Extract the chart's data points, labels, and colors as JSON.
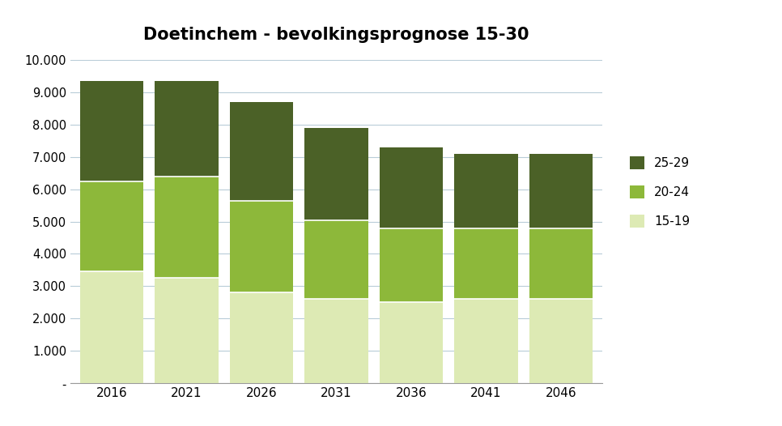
{
  "title": "Doetinchem - bevolkingsprognose 15-30",
  "years": [
    2016,
    2021,
    2026,
    2031,
    2036,
    2041,
    2046
  ],
  "series": {
    "15-19": [
      3450,
      3250,
      2800,
      2600,
      2500,
      2600,
      2600
    ],
    "20-24": [
      2800,
      3150,
      2850,
      2450,
      2300,
      2200,
      2200
    ],
    "25-29": [
      3100,
      2950,
      3050,
      2850,
      2500,
      2300,
      2300
    ]
  },
  "colors": {
    "15-19": "#ddeab4",
    "20-24": "#8db83a",
    "25-29": "#4b6127"
  },
  "bar_width": 0.85,
  "ylim": [
    0,
    10000
  ],
  "yticks": [
    0,
    1000,
    2000,
    3000,
    4000,
    5000,
    6000,
    7000,
    8000,
    9000,
    10000
  ],
  "ytick_labels": [
    "-",
    "1.000",
    "2.000",
    "3.000",
    "4.000",
    "5.000",
    "6.000",
    "7.000",
    "8.000",
    "9.000",
    "10.000"
  ],
  "background_color": "#ffffff",
  "grid_color": "#b8ccd8",
  "title_fontsize": 15,
  "series_order": [
    "15-19",
    "20-24",
    "25-29"
  ],
  "legend_labels": [
    "25-29",
    "20-24",
    "15-19"
  ]
}
